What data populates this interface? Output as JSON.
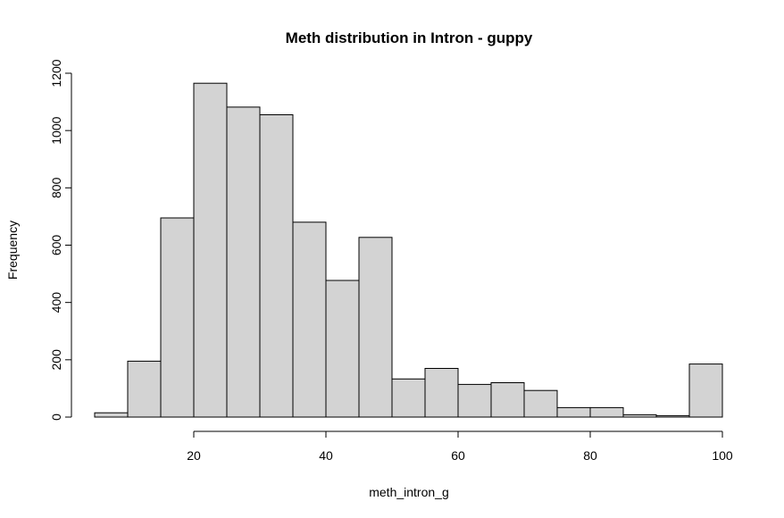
{
  "chart_data": {
    "type": "bar",
    "title": "Meth distribution in Intron - guppy",
    "xlabel": "meth_intron_g",
    "ylabel": "Frequency",
    "bin_width": 5,
    "bins": [
      {
        "start": 5,
        "end": 10,
        "count": 15
      },
      {
        "start": 10,
        "end": 15,
        "count": 195
      },
      {
        "start": 15,
        "end": 20,
        "count": 695
      },
      {
        "start": 20,
        "end": 25,
        "count": 1165
      },
      {
        "start": 25,
        "end": 30,
        "count": 1082
      },
      {
        "start": 30,
        "end": 35,
        "count": 1055
      },
      {
        "start": 35,
        "end": 40,
        "count": 680
      },
      {
        "start": 40,
        "end": 45,
        "count": 477
      },
      {
        "start": 45,
        "end": 50,
        "count": 627
      },
      {
        "start": 50,
        "end": 55,
        "count": 133
      },
      {
        "start": 55,
        "end": 60,
        "count": 170
      },
      {
        "start": 60,
        "end": 65,
        "count": 114
      },
      {
        "start": 65,
        "end": 70,
        "count": 120
      },
      {
        "start": 70,
        "end": 75,
        "count": 93
      },
      {
        "start": 75,
        "end": 80,
        "count": 33
      },
      {
        "start": 80,
        "end": 85,
        "count": 33
      },
      {
        "start": 85,
        "end": 90,
        "count": 8
      },
      {
        "start": 90,
        "end": 95,
        "count": 5
      },
      {
        "start": 95,
        "end": 100,
        "count": 185
      }
    ],
    "x_ticks": [
      20,
      40,
      60,
      80,
      100
    ],
    "y_ticks": [
      0,
      200,
      400,
      600,
      800,
      1000,
      1200
    ],
    "xlim": [
      5,
      100
    ],
    "ylim": [
      0,
      1200
    ],
    "bar_fill": "#d3d3d3",
    "bar_stroke": "#000000",
    "grid": false,
    "legend": "none"
  }
}
